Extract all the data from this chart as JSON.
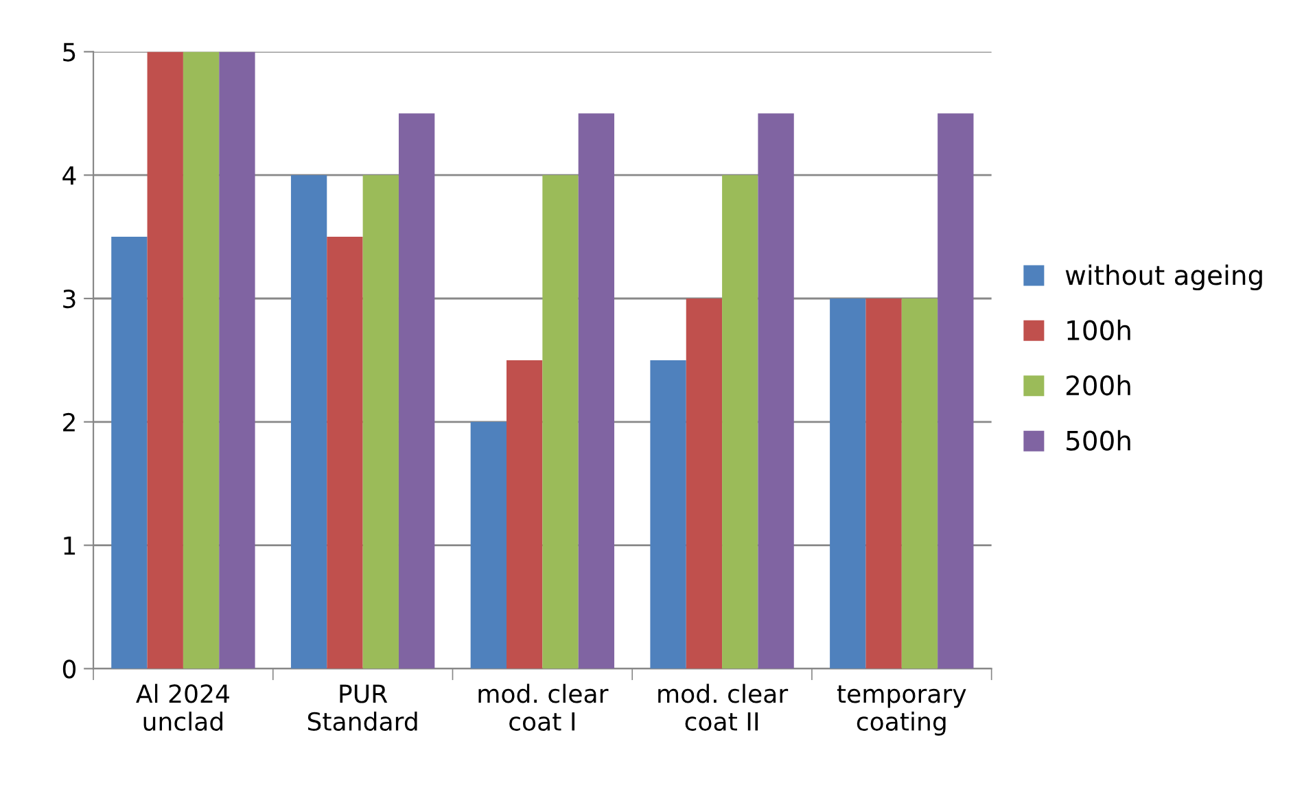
{
  "chart_data": {
    "type": "bar",
    "categories": [
      "Al 2024\nunclad",
      "PUR\nStandard",
      "mod. clear\ncoat I",
      "mod. clear\ncoat II",
      "temporary\ncoating"
    ],
    "series": [
      {
        "name": "without ageing",
        "color": "#4f81bd",
        "values": [
          3.5,
          4,
          2,
          2.5,
          3
        ]
      },
      {
        "name": "100h",
        "color": "#c0504d",
        "values": [
          5,
          3.5,
          2.5,
          3,
          3
        ]
      },
      {
        "name": "200h",
        "color": "#9bbb59",
        "values": [
          5,
          4,
          4,
          4,
          3
        ]
      },
      {
        "name": "500h",
        "color": "#8064a2",
        "values": [
          5,
          4.5,
          4.5,
          4.5,
          4.5
        ]
      }
    ],
    "ylim": [
      0,
      5
    ],
    "yticks": [
      0,
      1,
      2,
      3,
      4,
      5
    ],
    "grid": "y",
    "legend": "right"
  }
}
